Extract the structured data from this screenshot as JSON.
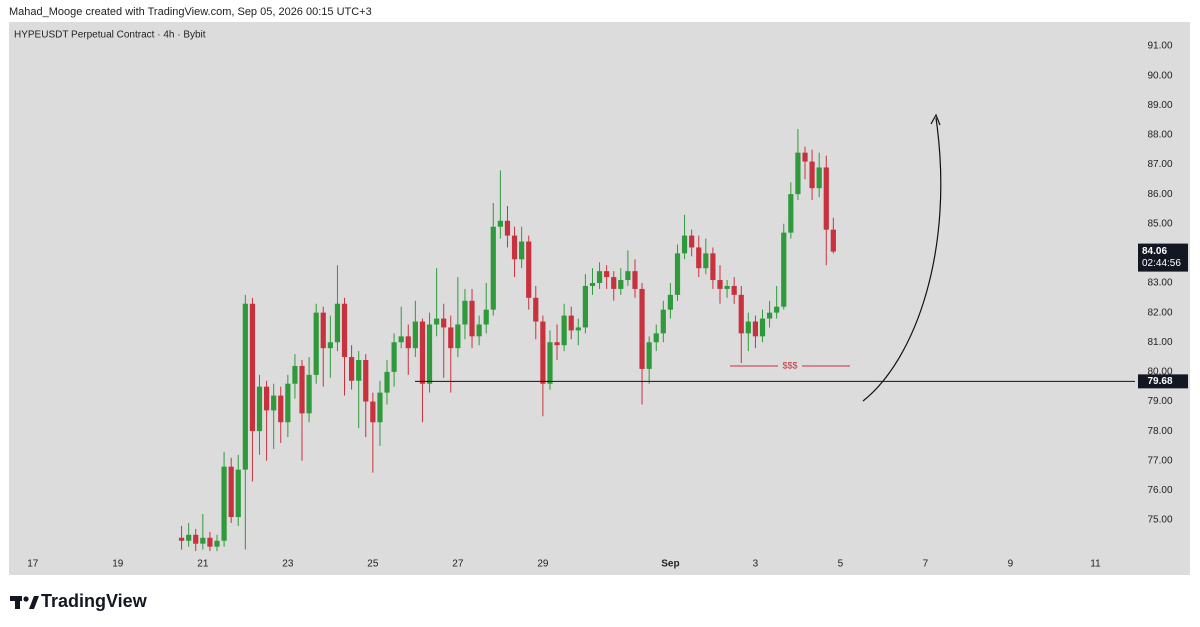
{
  "credit": "Mahad_Mooge created with TradingView.com, Sep 05, 2026 00:15 UTC+3",
  "logo_text": "TradingView",
  "chart_data": {
    "type": "candlestick",
    "title": "HYPEUSDT Perpetual Contract · 4h · Bybit",
    "up_color": "#2f9a3c",
    "down_color": "#c8323f",
    "x": [
      20.5,
      20.667,
      20.833,
      21,
      21.167,
      21.333,
      21.5,
      21.667,
      21.833,
      22,
      22.167,
      22.333,
      22.5,
      22.667,
      22.833,
      23,
      23.167,
      23.333,
      23.5,
      23.667,
      23.833,
      24,
      24.167,
      24.333,
      24.5,
      24.667,
      24.833,
      25,
      25.167,
      25.333,
      25.5,
      25.667,
      25.833,
      26,
      26.167,
      26.333,
      26.5,
      26.667,
      26.833,
      27,
      27.167,
      27.333,
      27.5,
      27.667,
      27.833,
      28,
      28.167,
      28.333,
      28.5,
      28.667,
      28.833,
      29,
      29.167,
      29.333,
      29.5,
      29.667,
      29.833,
      30,
      30.167,
      30.333,
      30.5,
      30.667,
      30.833,
      31,
      31.167,
      31.333,
      31.5,
      31.667,
      31.833,
      32,
      32.167,
      32.333,
      32.5,
      32.667,
      32.833,
      33,
      33.167,
      33.333,
      33.5,
      33.667,
      33.833,
      34,
      34.167,
      34.333,
      34.5,
      34.667,
      34.833,
      35,
      35.167,
      35.333,
      35.5,
      35.667,
      35.833
    ],
    "open": [
      74.4,
      74.3,
      74.5,
      74.2,
      74.4,
      74.1,
      74.3,
      76.8,
      75.1,
      76.7,
      82.3,
      78.0,
      79.5,
      78.7,
      79.2,
      78.3,
      79.6,
      80.2,
      78.6,
      79.9,
      82.0,
      80.8,
      81.0,
      82.3,
      80.5,
      79.7,
      80.4,
      79.0,
      78.3,
      79.3,
      80.0,
      81.0,
      81.2,
      80.8,
      81.7,
      79.6,
      81.6,
      81.8,
      81.5,
      80.8,
      81.6,
      82.4,
      81.2,
      81.6,
      82.1,
      84.9,
      85.1,
      84.6,
      83.8,
      84.4,
      82.5,
      81.7,
      79.6,
      81.0,
      80.9,
      81.9,
      81.4,
      81.5,
      82.9,
      83.0,
      83.4,
      83.2,
      82.8,
      83.1,
      83.4,
      82.8,
      80.1,
      81.0,
      81.3,
      82.1,
      82.6,
      84.0,
      84.6,
      84.2,
      83.5,
      84.0,
      83.1,
      82.8,
      82.9,
      82.6,
      81.3,
      81.7,
      81.2,
      81.8,
      82.0,
      82.2,
      84.7,
      86.0,
      87.4,
      87.1,
      86.2,
      86.9,
      84.8
    ],
    "high": [
      74.8,
      74.9,
      74.7,
      75.2,
      74.6,
      74.5,
      77.3,
      77.1,
      77.2,
      82.6,
      82.5,
      79.9,
      79.7,
      79.6,
      79.5,
      79.9,
      80.6,
      80.4,
      80.5,
      82.3,
      82.2,
      81.9,
      83.6,
      82.5,
      80.9,
      80.7,
      80.6,
      79.3,
      79.7,
      80.4,
      81.3,
      82.2,
      81.6,
      82.4,
      81.8,
      82.0,
      83.5,
      82.3,
      81.9,
      83.2,
      82.8,
      82.8,
      81.9,
      83.0,
      85.7,
      86.8,
      85.6,
      84.9,
      84.9,
      84.6,
      82.9,
      81.9,
      81.4,
      81.6,
      82.3,
      82.2,
      81.8,
      83.3,
      83.5,
      83.7,
      83.6,
      83.4,
      83.5,
      84.1,
      83.8,
      83.0,
      81.2,
      81.6,
      82.4,
      83.0,
      84.3,
      85.3,
      84.8,
      84.6,
      84.5,
      84.2,
      83.6,
      83.1,
      83.2,
      82.9,
      82.0,
      81.9,
      82.1,
      82.4,
      82.9,
      85.0,
      86.4,
      88.2,
      87.6,
      87.5,
      87.4,
      87.3,
      85.2
    ],
    "low": [
      74.0,
      74.1,
      73.95,
      74.0,
      73.95,
      73.95,
      74.1,
      74.9,
      74.8,
      74.0,
      76.3,
      77.2,
      77.0,
      77.4,
      77.6,
      77.8,
      79.1,
      77.0,
      78.3,
      79.6,
      79.5,
      79.8,
      80.7,
      79.2,
      79.4,
      78.1,
      77.8,
      76.6,
      77.5,
      78.9,
      79.5,
      80.8,
      79.9,
      80.5,
      78.3,
      79.3,
      81.2,
      79.8,
      79.3,
      80.5,
      81.1,
      80.8,
      80.9,
      81.3,
      81.9,
      84.5,
      84.2,
      83.2,
      83.5,
      82.1,
      81.1,
      78.5,
      79.4,
      80.4,
      80.7,
      81.1,
      80.9,
      81.3,
      82.6,
      82.8,
      82.8,
      82.4,
      82.6,
      82.9,
      82.5,
      78.9,
      79.6,
      80.7,
      81.0,
      81.8,
      82.4,
      83.8,
      83.9,
      83.2,
      83.3,
      82.8,
      82.3,
      82.5,
      82.3,
      80.3,
      80.7,
      80.8,
      81.0,
      81.5,
      81.8,
      82.1,
      84.5,
      85.8,
      86.5,
      85.8,
      85.9,
      83.6,
      84.0
    ],
    "close": [
      74.3,
      74.5,
      74.2,
      74.4,
      74.1,
      74.3,
      76.8,
      75.1,
      76.7,
      82.3,
      78.0,
      79.5,
      78.7,
      79.2,
      78.3,
      79.6,
      80.2,
      78.6,
      79.9,
      82.0,
      80.8,
      81.0,
      82.3,
      80.5,
      79.7,
      80.4,
      79.0,
      78.3,
      79.3,
      80.0,
      81.0,
      81.2,
      80.8,
      81.7,
      79.6,
      81.6,
      81.8,
      81.5,
      80.8,
      81.6,
      82.4,
      81.2,
      81.6,
      82.1,
      84.9,
      85.1,
      84.6,
      83.8,
      84.4,
      82.5,
      81.7,
      79.6,
      81.0,
      80.9,
      81.9,
      81.4,
      81.5,
      82.9,
      83.0,
      83.4,
      83.2,
      82.8,
      83.1,
      83.4,
      82.8,
      80.1,
      81.0,
      81.3,
      82.1,
      82.6,
      84.0,
      84.6,
      84.2,
      83.5,
      84.0,
      83.1,
      82.8,
      82.9,
      82.6,
      81.3,
      81.7,
      81.2,
      81.8,
      82.0,
      82.2,
      84.7,
      86.0,
      87.4,
      87.1,
      86.2,
      86.9,
      84.8,
      84.06
    ],
    "xlim": [
      16.44,
      42.93
    ],
    "xticks": [
      17,
      19,
      21,
      23,
      25,
      27,
      29,
      {
        "value": 32,
        "label": "Sep"
      },
      {
        "value": 34,
        "label": "3"
      },
      {
        "value": 36,
        "label": "5"
      },
      {
        "value": 38,
        "label": "7"
      },
      {
        "value": 40,
        "label": "9"
      },
      {
        "value": 42,
        "label": "11"
      }
    ],
    "ylim": [
      73.92,
      91.81
    ],
    "yticks": [
      {
        "value": 75,
        "label": "75.00"
      },
      {
        "value": 76,
        "label": "76.00"
      },
      {
        "value": 77,
        "label": "77.00"
      },
      {
        "value": 78,
        "label": "78.00"
      },
      {
        "value": 79,
        "label": "79.00"
      },
      {
        "value": 80,
        "label": "80.00"
      },
      {
        "value": 81,
        "label": "81.00"
      },
      {
        "value": 82,
        "label": "82.00"
      },
      {
        "value": 83,
        "label": "83.00"
      },
      {
        "value": 84,
        "label": "84.00"
      },
      {
        "value": 85,
        "label": "85.00"
      },
      {
        "value": 86,
        "label": "86.00"
      },
      {
        "value": 87,
        "label": "87.00"
      },
      {
        "value": 88,
        "label": "88.00"
      },
      {
        "value": 89,
        "label": "89.00"
      },
      {
        "value": 90,
        "label": "90.00"
      },
      {
        "value": 91,
        "label": "91.00"
      }
    ],
    "support_level": 79.68,
    "liquidity_level": 80.2,
    "liquidity_label": "$$$",
    "last_price": 84.06,
    "countdown": "02:44:56"
  }
}
